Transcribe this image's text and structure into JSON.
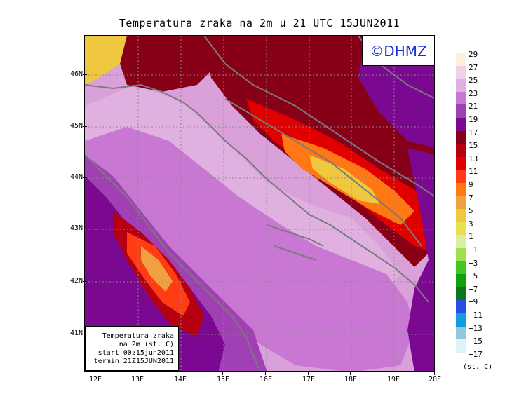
{
  "title": "Temperatura zraka na 2m u 21 UTC 15JUN2011",
  "brand": "©DHMZ",
  "info_box": {
    "line1": "Temperatura zraka",
    "line2": "na 2m (st. C)",
    "line3": "start 00z15jun2011",
    "line4": "termin 21Z15JUN2011"
  },
  "axes": {
    "lat_labels": [
      "46N",
      "45N",
      "44N",
      "43N",
      "42N",
      "41N"
    ],
    "lon_labels": [
      "12E",
      "13E",
      "14E",
      "15E",
      "16E",
      "17E",
      "18E",
      "19E",
      "20E"
    ]
  },
  "legend": {
    "units": "(st. C)",
    "labels": [
      "29",
      "27",
      "25",
      "23",
      "21",
      "19",
      "17",
      "15",
      "13",
      "11",
      "9",
      "7",
      "5",
      "3",
      "1",
      "−1",
      "−3",
      "−5",
      "−7",
      "−9",
      "−11",
      "−13",
      "−15",
      "−17"
    ],
    "colors": [
      "#fff0dc",
      "#f0d2e6",
      "#e0b0e0",
      "#c878d2",
      "#a040b4",
      "#7a0890",
      "#880018",
      "#b40010",
      "#e00000",
      "#ff3c14",
      "#ff7814",
      "#f0a040",
      "#f0c840",
      "#e8e050",
      "#d8f0a0",
      "#a0e050",
      "#40c820",
      "#10a010",
      "#087818",
      "#2850e0",
      "#109ee0",
      "#90c8dc",
      "#dcf4f8",
      "#ffffff"
    ]
  },
  "colors": {
    "sea": "#d9a0d9",
    "land_warm": "#c878d2",
    "coast_lines": "#7a7a7a",
    "hot": "#e00000"
  }
}
